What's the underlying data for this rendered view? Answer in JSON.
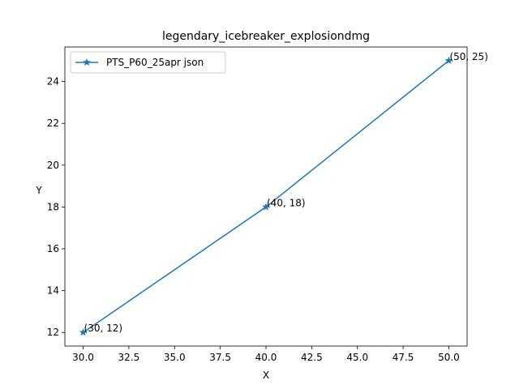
{
  "chart_data": {
    "type": "line",
    "title": "legendary_icebreaker_explosiondmg",
    "xlabel": "X",
    "ylabel": "Y",
    "xlim": [
      29.0,
      51.0
    ],
    "ylim": [
      11.35,
      25.65
    ],
    "xticks": [
      "30.0",
      "32.5",
      "35.0",
      "37.5",
      "40.0",
      "42.5",
      "45.0",
      "47.5",
      "50.0"
    ],
    "yticks": [
      "12",
      "14",
      "16",
      "18",
      "20",
      "22",
      "24"
    ],
    "grid": false,
    "legend_position": "top-left",
    "series": [
      {
        "name": "PTS_P60_25apr json",
        "color": "#1f77b4",
        "marker": "star",
        "x": [
          30,
          40,
          50
        ],
        "y": [
          12,
          18,
          25
        ]
      }
    ],
    "annotations": [
      "(30, 12)",
      "(40, 18)",
      "(50, 25)"
    ]
  }
}
